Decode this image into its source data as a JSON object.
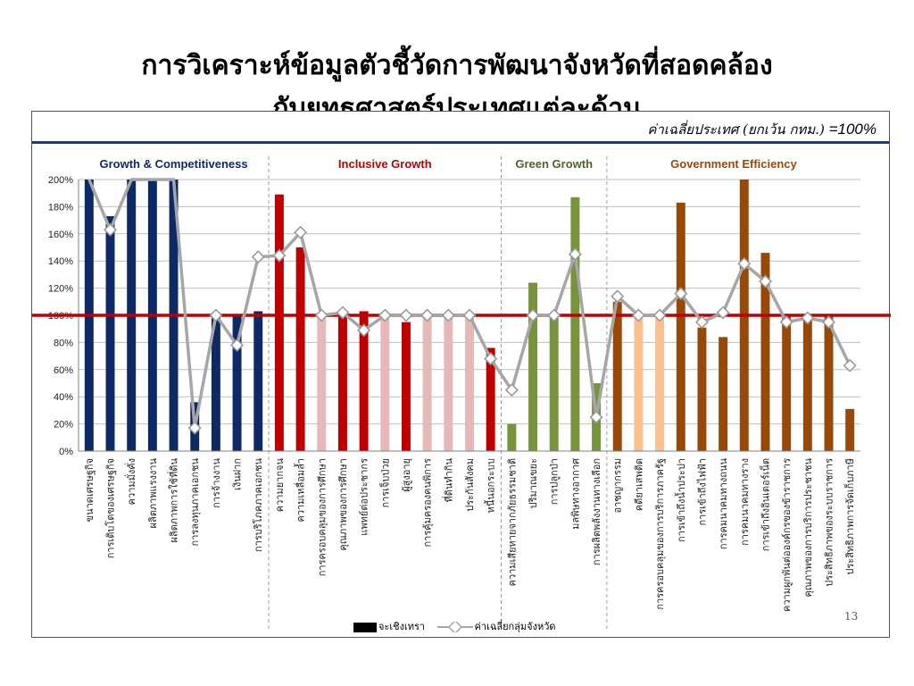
{
  "slide": {
    "title_line1": "การวิเคราะห์ข้อมูลตัวชี้วัดการพัฒนาจังหวัดที่สอดคล้อง",
    "title_line2": "กับยุทธศาสตร์ประเทศแต่ละด้าน",
    "page_number": "13"
  },
  "header_note": {
    "text": "ค่าเฉลี่ยประเทศ (ยกเว้น กทม.) ",
    "value": "=100%"
  },
  "legend": {
    "bar_label": "จะเชิงเทรา",
    "line_label": "ค่าเฉลี่ยกลุ่มจังหวัด"
  },
  "colors": {
    "reference_line": "#c00000",
    "group_line": "#a6a6a6",
    "navy": "#0d2a66",
    "red": "#c00000",
    "pink": "#e6b9b8",
    "green": "#77933c",
    "brown": "#984807",
    "peach": "#fac090"
  },
  "chart_data": {
    "type": "bar",
    "ylim": [
      0,
      200
    ],
    "yticks": [
      "0%",
      "20%",
      "40%",
      "60%",
      "80%",
      "100%",
      "120%",
      "140%",
      "160%",
      "180%",
      "200%"
    ],
    "reference_value": 100,
    "grid": true,
    "groups": [
      {
        "name": "Growth & Competitiveness",
        "color": "#0d2a66",
        "start": 0,
        "end": 8
      },
      {
        "name": "Inclusive Growth",
        "color": "#c00000",
        "start": 9,
        "end": 19
      },
      {
        "name": "Green Growth",
        "color": "#4f6228",
        "start": 20,
        "end": 24
      },
      {
        "name": "Government Efficiency",
        "color": "#984807",
        "start": 25,
        "end": 36
      }
    ],
    "categories": [
      "ขนาดเศรษฐกิจ",
      "การเติบโตของเศรษฐกิจ",
      "ความมั่งคั่ง",
      "ผลิตภาพแรงงาน",
      "ผลิตภาพการใช้ที่ดิน",
      "การลงทุนภาคเอกชน",
      "การจ้างงาน",
      "เงินฝาก",
      "การบริโภคภาคเอกชน",
      "ความยากจน",
      "ความเหลื่อมล้ำ",
      "การครอบคลุมของการศึกษา",
      "คุณภาพของการศึกษา",
      "แพทย์ต่อประชากร",
      "การเจ็บป่วย",
      "ผู้สูงอายุ",
      "การคุ้มครองคนพิการ",
      "ที่ดินทำกิน",
      "ประกันสังคม",
      "หนี้นอกระบบ",
      "ความเสียหายจากภัยธรรมชาติ",
      "ปริมาณขยะ",
      "การปลูกป่า",
      "มลพิษทางอากาศ",
      "การผลิตพลังงานทางเลือก",
      "อาชญากรรม",
      "คดียาเสพติด",
      "การครอบคลุมของการบริการภาครัฐ",
      "การเข้าถึงน้ำประปา",
      "การเข้าถึงไฟฟ้า",
      "การคมนาคมทางถนน",
      "การคมนาคมทางราง",
      "การเข้าถึงอินเตอร์เน็ต",
      "ความผูกพันต่อองค์กรของข้าราชการ",
      "คุณภาพของการบริการประชาชน",
      "ประสิทธิภาพของระบบราชการ",
      "ประสิทธิภาพการจัดเก็บภาษี"
    ],
    "series": [
      {
        "name": "จะเชิงเทรา",
        "type": "bar",
        "values": [
          200,
          173,
          200,
          200,
          200,
          36,
          100,
          100,
          103,
          189,
          150,
          100,
          100,
          103,
          100,
          95,
          100,
          100,
          100,
          76,
          20,
          124,
          100,
          187,
          50,
          110,
          100,
          100,
          183,
          91,
          84,
          200,
          146,
          100,
          100,
          101,
          31
        ],
        "colors": [
          "#0d2a66",
          "#0d2a66",
          "#0d2a66",
          "#0d2a66",
          "#0d2a66",
          "#0d2a66",
          "#0d2a66",
          "#0d2a66",
          "#0d2a66",
          "#c00000",
          "#c00000",
          "#e6b9b8",
          "#c00000",
          "#c00000",
          "#e6b9b8",
          "#c00000",
          "#e6b9b8",
          "#e6b9b8",
          "#e6b9b8",
          "#c00000",
          "#77933c",
          "#77933c",
          "#77933c",
          "#77933c",
          "#77933c",
          "#984807",
          "#fac090",
          "#fac090",
          "#984807",
          "#984807",
          "#984807",
          "#984807",
          "#984807",
          "#984807",
          "#984807",
          "#984807",
          "#984807"
        ]
      },
      {
        "name": "ค่าเฉลี่ยกลุ่มจังหวัด",
        "type": "line",
        "values": [
          210,
          163,
          210,
          210,
          210,
          17,
          100,
          78,
          143,
          144,
          161,
          100,
          102,
          89,
          100,
          100,
          100,
          100,
          100,
          68,
          45,
          100,
          100,
          145,
          25,
          114,
          100,
          100,
          116,
          95,
          102,
          138,
          125,
          95,
          98,
          95,
          63
        ]
      }
    ]
  }
}
